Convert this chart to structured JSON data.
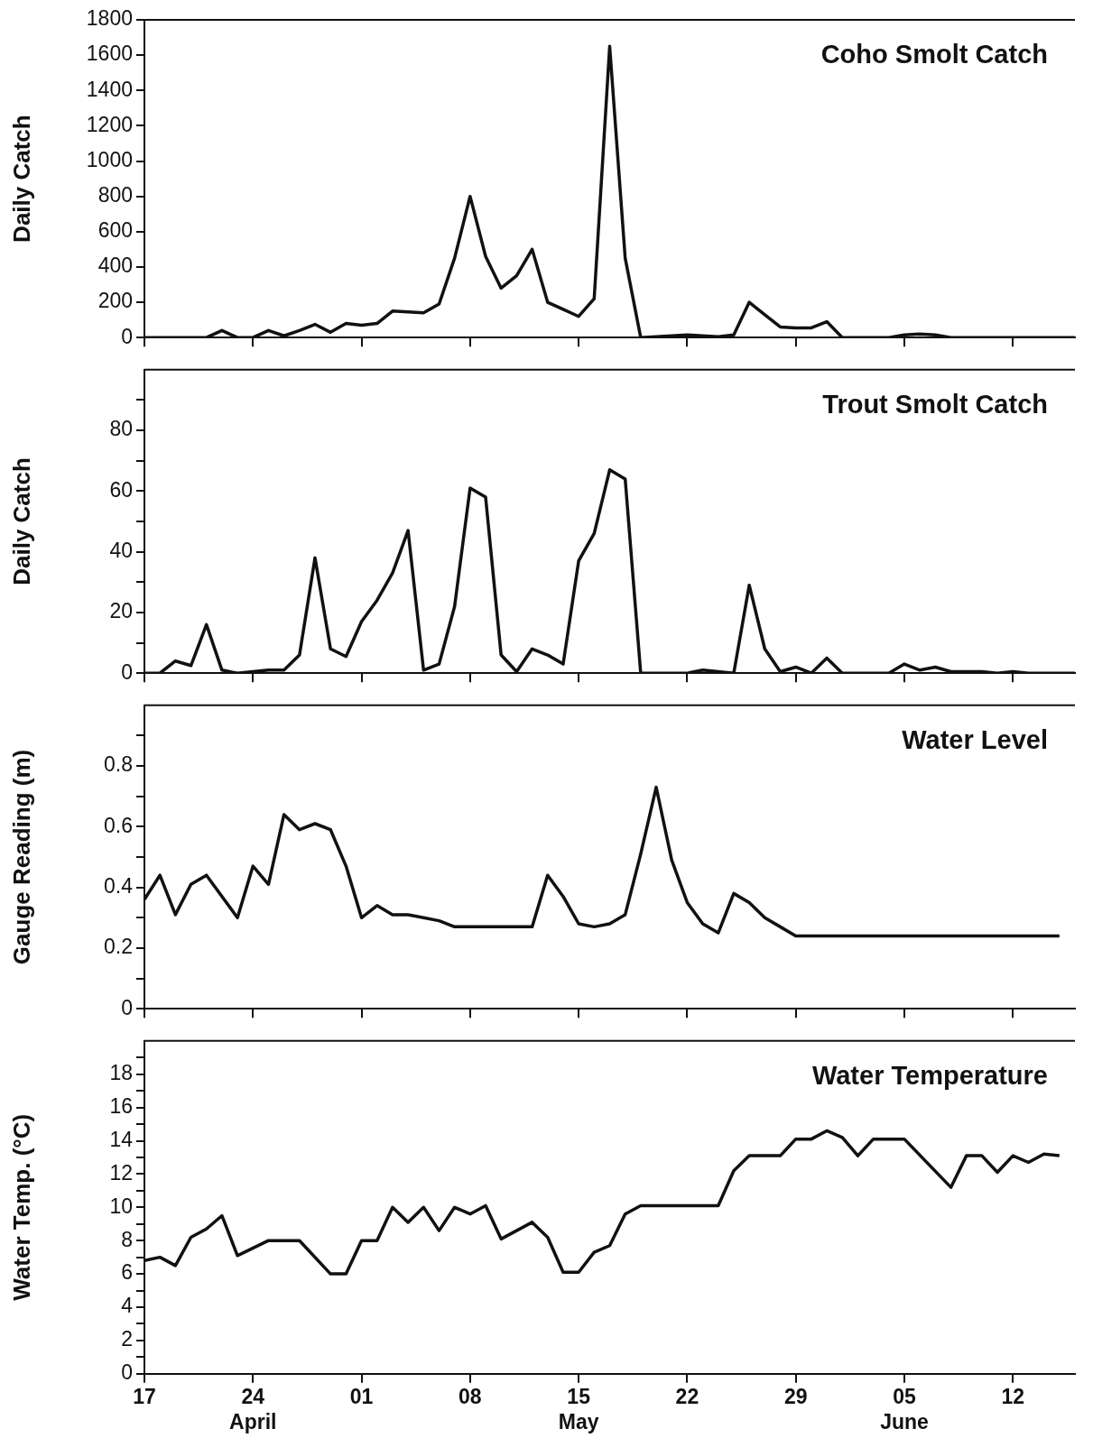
{
  "chart_data": [
    {
      "type": "line",
      "title": "Coho Smolt Catch",
      "ylabel": "Daily Catch",
      "grid": false,
      "tick_labels": "y",
      "marker": "none",
      "line_style": "solid",
      "color": "#111111",
      "xlim": [
        "--04-17",
        "--06-16"
      ],
      "xticks": [
        {
          "value": "--04-17",
          "label": "17"
        },
        {
          "value": "--04-24",
          "label": "24\nApril"
        },
        {
          "value": "--05-01",
          "label": "01"
        },
        {
          "value": "--05-08",
          "label": "08"
        },
        {
          "value": "--05-15",
          "label": "15\nMay"
        },
        {
          "value": "--05-22",
          "label": "22"
        },
        {
          "value": "--05-29",
          "label": "29"
        },
        {
          "value": "--06-05",
          "label": "05\nJune"
        },
        {
          "value": "--06-12",
          "label": "12"
        }
      ],
      "ylim": [
        0,
        1800
      ],
      "yticks": [
        0,
        200,
        400,
        600,
        800,
        1000,
        1200,
        1400,
        1600,
        1800
      ],
      "x": [
        "--04-17",
        "--04-18",
        "--04-19",
        "--04-20",
        "--04-21",
        "--04-22",
        "--04-23",
        "--04-24",
        "--04-25",
        "--04-26",
        "--04-27",
        "--04-28",
        "--04-29",
        "--04-30",
        "--05-01",
        "--05-02",
        "--05-03",
        "--05-04",
        "--05-05",
        "--05-06",
        "--05-07",
        "--05-08",
        "--05-09",
        "--05-10",
        "--05-11",
        "--05-12",
        "--05-13",
        "--05-14",
        "--05-15",
        "--05-16",
        "--05-17",
        "--05-18",
        "--05-19",
        "--05-20",
        "--05-21",
        "--05-22",
        "--05-23",
        "--05-24",
        "--05-25",
        "--05-26",
        "--05-27",
        "--05-28",
        "--05-29",
        "--05-30",
        "--05-31",
        "--06-01",
        "--06-02",
        "--06-03",
        "--06-04",
        "--06-05",
        "--06-06",
        "--06-07",
        "--06-08",
        "--06-09",
        "--06-10",
        "--06-11",
        "--06-12",
        "--06-13",
        "--06-14",
        "--06-15",
        "--06-16"
      ],
      "values": [
        0,
        0,
        0,
        0,
        0,
        40,
        0,
        0,
        40,
        10,
        40,
        75,
        30,
        80,
        70,
        80,
        150,
        145,
        140,
        190,
        450,
        800,
        460,
        280,
        350,
        500,
        200,
        160,
        120,
        220,
        1650,
        450,
        0,
        5,
        10,
        15,
        10,
        5,
        15,
        200,
        130,
        60,
        55,
        55,
        90,
        0,
        0,
        0,
        0,
        15,
        20,
        15,
        0,
        0,
        0,
        0,
        0,
        0,
        0,
        0,
        0
      ]
    },
    {
      "type": "line",
      "title": "Trout Smolt Catch",
      "ylabel": "Daily Catch",
      "grid": false,
      "tick_labels": "y",
      "marker": "none",
      "line_style": "solid",
      "color": "#111111",
      "xlim": [
        "--04-17",
        "--06-16"
      ],
      "xticks": [
        {
          "value": "--04-17",
          "label": "17"
        },
        {
          "value": "--04-24",
          "label": "24\nApril"
        },
        {
          "value": "--05-01",
          "label": "01"
        },
        {
          "value": "--05-08",
          "label": "08"
        },
        {
          "value": "--05-15",
          "label": "15\nMay"
        },
        {
          "value": "--05-22",
          "label": "22"
        },
        {
          "value": "--05-29",
          "label": "29"
        },
        {
          "value": "--06-05",
          "label": "05\nJune"
        },
        {
          "value": "--06-12",
          "label": "12"
        }
      ],
      "ylim": [
        0,
        100
      ],
      "yticks": [
        0,
        {
          "value": 10,
          "label": null
        },
        20,
        {
          "value": 30,
          "label": null
        },
        40,
        {
          "value": 50,
          "label": null
        },
        60,
        {
          "value": 70,
          "label": null
        },
        80,
        {
          "value": 90,
          "label": null
        }
      ],
      "x": [
        "--04-17",
        "--04-18",
        "--04-19",
        "--04-20",
        "--04-21",
        "--04-22",
        "--04-23",
        "--04-24",
        "--04-25",
        "--04-26",
        "--04-27",
        "--04-28",
        "--04-29",
        "--04-30",
        "--05-01",
        "--05-02",
        "--05-03",
        "--05-04",
        "--05-05",
        "--05-06",
        "--05-07",
        "--05-08",
        "--05-09",
        "--05-10",
        "--05-11",
        "--05-12",
        "--05-13",
        "--05-14",
        "--05-15",
        "--05-16",
        "--05-17",
        "--05-18",
        "--05-19",
        "--05-20",
        "--05-21",
        "--05-22",
        "--05-23",
        "--05-24",
        "--05-25",
        "--05-26",
        "--05-27",
        "--05-28",
        "--05-29",
        "--05-30",
        "--05-31",
        "--06-01",
        "--06-02",
        "--06-03",
        "--06-04",
        "--06-05",
        "--06-06",
        "--06-07",
        "--06-08",
        "--06-09",
        "--06-10",
        "--06-11",
        "--06-12",
        "--06-13",
        "--06-14",
        "--06-15",
        "--06-16"
      ],
      "values": [
        0,
        0,
        4,
        2.5,
        16,
        1,
        0,
        0.5,
        1,
        1,
        6,
        38,
        8,
        5.5,
        17,
        24,
        33,
        47,
        1,
        3,
        22,
        61,
        58,
        6,
        0.5,
        8,
        6,
        3,
        37,
        46,
        67,
        64,
        0,
        0,
        0,
        0,
        1,
        0.5,
        0,
        29,
        8,
        0.5,
        2,
        0,
        5,
        0,
        0,
        0,
        0,
        3,
        1,
        2,
        0.5,
        0.5,
        0.5,
        0,
        0.5,
        0,
        0,
        0,
        0
      ]
    },
    {
      "type": "line",
      "title": "Water Level",
      "ylabel": "Gauge Reading (m)",
      "grid": false,
      "tick_labels": "y",
      "marker": "none",
      "line_style": "solid",
      "color": "#111111",
      "xlim": [
        "--04-17",
        "--06-16"
      ],
      "xticks": [
        {
          "value": "--04-17",
          "label": "17"
        },
        {
          "value": "--04-24",
          "label": "24\nApril"
        },
        {
          "value": "--05-01",
          "label": "01"
        },
        {
          "value": "--05-08",
          "label": "08"
        },
        {
          "value": "--05-15",
          "label": "15\nMay"
        },
        {
          "value": "--05-22",
          "label": "22"
        },
        {
          "value": "--05-29",
          "label": "29"
        },
        {
          "value": "--06-05",
          "label": "05\nJune"
        },
        {
          "value": "--06-12",
          "label": "12"
        }
      ],
      "ylim": [
        0,
        1
      ],
      "yticks": [
        0,
        {
          "value": 0.1,
          "label": null
        },
        0.2,
        {
          "value": 0.3,
          "label": null
        },
        0.4,
        {
          "value": 0.5,
          "label": null
        },
        0.6,
        {
          "value": 0.7,
          "label": null
        },
        0.8,
        {
          "value": 0.9,
          "label": null
        }
      ],
      "x": [
        "--04-17",
        "--04-18",
        "--04-19",
        "--04-20",
        "--04-21",
        "--04-23",
        "--04-24",
        "--04-25",
        "--04-26",
        "--04-27",
        "--04-28",
        "--04-29",
        "--04-30",
        "--05-01",
        "--05-02",
        "--05-03",
        "--05-04",
        "--05-05",
        "--05-06",
        "--05-07",
        "--05-12",
        "--05-13",
        "--05-14",
        "--05-15",
        "--05-16",
        "--05-17",
        "--05-18",
        "--05-19",
        "--05-20",
        "--05-21",
        "--05-22",
        "--05-23",
        "--05-24",
        "--05-25",
        "--05-26",
        "--05-27",
        "--05-28",
        "--05-29",
        "--06-06",
        "--06-15"
      ],
      "values": [
        0.36,
        0.44,
        0.31,
        0.41,
        0.44,
        0.3,
        0.47,
        0.41,
        0.64,
        0.59,
        0.61,
        0.59,
        0.47,
        0.3,
        0.34,
        0.31,
        0.31,
        0.3,
        0.29,
        0.27,
        0.27,
        0.44,
        0.37,
        0.28,
        0.27,
        0.28,
        0.31,
        0.51,
        0.73,
        0.49,
        0.35,
        0.28,
        0.25,
        0.38,
        0.35,
        0.3,
        0.27,
        0.24,
        0.24,
        0.24
      ]
    },
    {
      "type": "line",
      "title": "Water Temperature",
      "ylabel": "Water Temp. (°C)",
      "grid": false,
      "marker": "none",
      "line_style": "solid",
      "color": "#111111",
      "xlim": [
        "--04-17",
        "--06-16"
      ],
      "xticks": [
        {
          "value": "--04-17",
          "label": "17"
        },
        {
          "value": "--04-24",
          "label": "24\nApril"
        },
        {
          "value": "--05-01",
          "label": "01"
        },
        {
          "value": "--05-08",
          "label": "08"
        },
        {
          "value": "--05-15",
          "label": "15\nMay"
        },
        {
          "value": "--05-22",
          "label": "22"
        },
        {
          "value": "--05-29",
          "label": "29"
        },
        {
          "value": "--06-05",
          "label": "05\nJune"
        },
        {
          "value": "--06-12",
          "label": "12"
        }
      ],
      "ylim": [
        0,
        20
      ],
      "yticks": [
        0,
        {
          "value": 1,
          "label": null
        },
        2,
        {
          "value": 3,
          "label": null
        },
        4,
        {
          "value": 5,
          "label": null
        },
        6,
        {
          "value": 7,
          "label": null
        },
        8,
        {
          "value": 9,
          "label": null
        },
        10,
        {
          "value": 11,
          "label": null
        },
        12,
        {
          "value": 13,
          "label": null
        },
        14,
        {
          "value": 15,
          "label": null
        },
        16,
        {
          "value": 17,
          "label": null
        },
        18,
        {
          "value": 19,
          "label": null
        }
      ],
      "x": [
        "--04-17",
        "--04-18",
        "--04-19",
        "--04-20",
        "--04-21",
        "--04-22",
        "--04-23",
        "--04-25",
        "--04-27",
        "--04-29",
        "--04-30",
        "--05-01",
        "--05-02",
        "--05-03",
        "--05-04",
        "--05-05",
        "--05-06",
        "--05-07",
        "--05-08",
        "--05-09",
        "--05-10",
        "--05-11",
        "--05-12",
        "--05-13",
        "--05-14",
        "--05-15",
        "--05-16",
        "--05-17",
        "--05-18",
        "--05-19",
        "--05-24",
        "--05-25",
        "--05-26",
        "--05-28",
        "--05-29",
        "--05-30",
        "--05-31",
        "--06-01",
        "--06-02",
        "--06-03",
        "--06-05",
        "--06-08",
        "--06-09",
        "--06-10",
        "--06-11",
        "--06-12",
        "--06-13",
        "--06-14",
        "--06-15"
      ],
      "values": [
        6.8,
        7.0,
        6.5,
        8.2,
        8.7,
        9.5,
        7.1,
        8.0,
        8.0,
        6.0,
        6.0,
        8.0,
        8.0,
        10.0,
        9.1,
        10.0,
        8.6,
        10.0,
        9.6,
        10.1,
        8.1,
        8.6,
        9.1,
        8.2,
        6.1,
        6.1,
        7.3,
        7.7,
        9.6,
        10.1,
        10.1,
        12.2,
        13.1,
        13.1,
        14.1,
        14.1,
        14.6,
        14.2,
        13.1,
        14.1,
        14.1,
        11.2,
        13.1,
        13.1,
        12.1,
        13.1,
        12.7,
        13.2,
        13.1
      ]
    }
  ]
}
